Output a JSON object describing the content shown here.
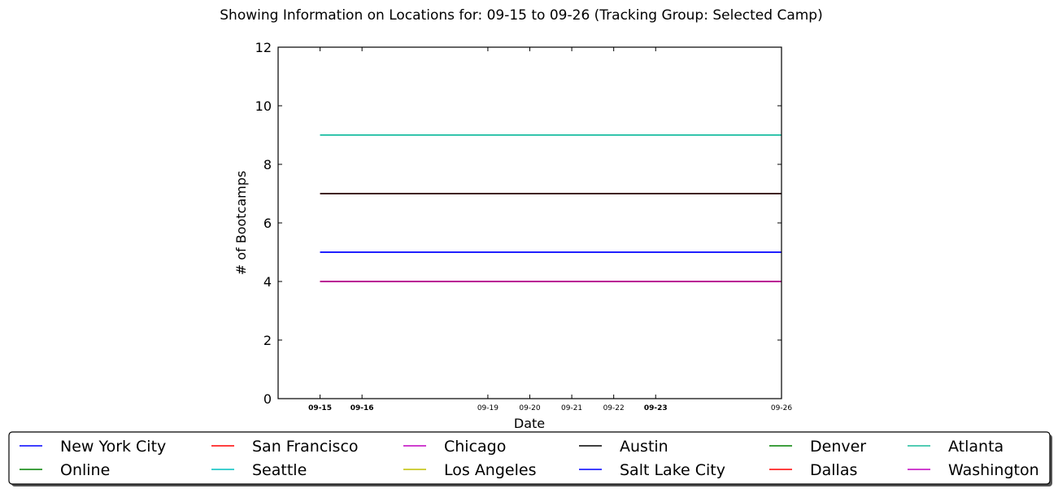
{
  "chart_data": {
    "type": "line",
    "title": "Showing Information on Locations for: 09-15 to 09-26 (Tracking Group: Selected Camp)",
    "xlabel": "Date",
    "ylabel": "# of Bootcamps",
    "ylim": [
      0,
      12
    ],
    "xlim": [
      "09-14",
      "09-26"
    ],
    "yticks": [
      0,
      2,
      4,
      6,
      8,
      10,
      12
    ],
    "xticks": [
      {
        "label": "09-15",
        "bold": true
      },
      {
        "label": "09-16",
        "bold": true
      },
      {
        "label": "09-19",
        "bold": false
      },
      {
        "label": "09-20",
        "bold": false
      },
      {
        "label": "09-21",
        "bold": false
      },
      {
        "label": "09-22",
        "bold": false
      },
      {
        "label": "09-23",
        "bold": true
      },
      {
        "label": "09-26",
        "bold": false
      }
    ],
    "grid": false,
    "legend_position": "bottom",
    "x": [
      "09-15",
      "09-26"
    ],
    "series": [
      {
        "name": "New York City",
        "color": "#0000ff",
        "values": [
          5,
          5
        ]
      },
      {
        "name": "Online",
        "color": "#008000",
        "values": [
          4,
          4
        ]
      },
      {
        "name": "San Francisco",
        "color": "#ff0000",
        "values": [
          7,
          7
        ]
      },
      {
        "name": "Seattle",
        "color": "#00bfbf",
        "values": [
          9,
          9
        ]
      },
      {
        "name": "Chicago",
        "color": "#bf00bf",
        "values": [
          4,
          4
        ]
      },
      {
        "name": "Los Angeles",
        "color": "#bfbf00",
        "values": [
          4,
          4
        ]
      },
      {
        "name": "Austin",
        "color": "#000000",
        "values": [
          7,
          7
        ]
      },
      {
        "name": "Salt Lake City",
        "color": "#0000ff",
        "values": [
          5,
          5
        ]
      },
      {
        "name": "Denver",
        "color": "#008000",
        "values": [
          4,
          4
        ]
      },
      {
        "name": "Dallas",
        "color": "#ff0000",
        "values": [
          4,
          4
        ]
      },
      {
        "name": "Atlanta",
        "color": "#1abc9c",
        "values": [
          9,
          9
        ]
      },
      {
        "name": "Washington",
        "color": "#bf00bf",
        "values": [
          4,
          4
        ]
      }
    ]
  }
}
